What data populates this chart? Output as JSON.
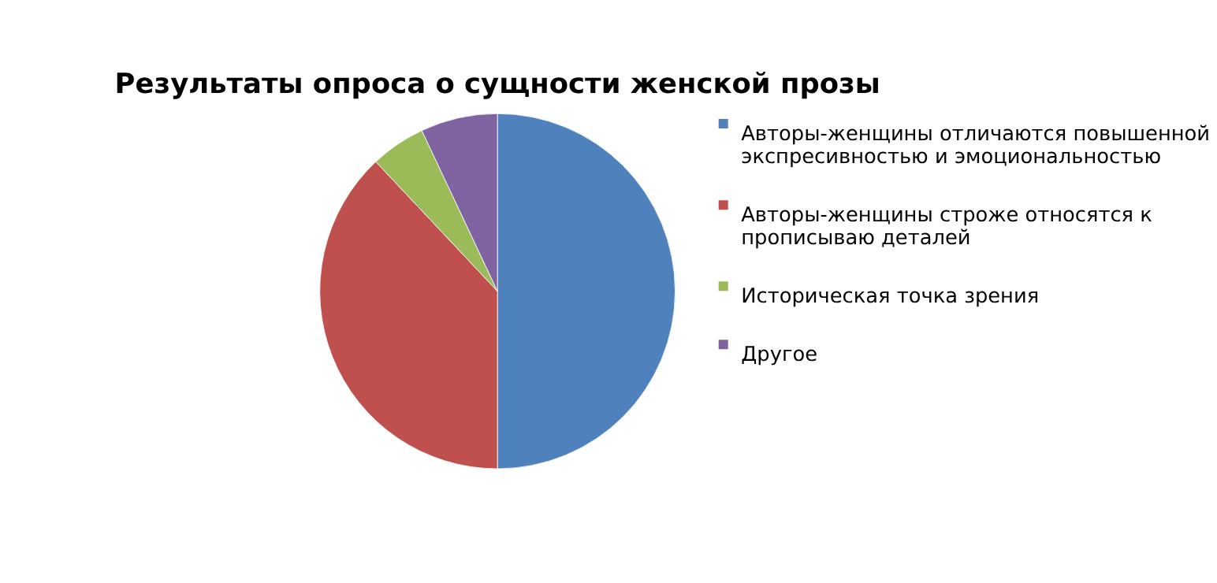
{
  "chart_data": {
    "type": "pie",
    "title": "Результаты опроса о сущности женской прозы",
    "categories": [
      "Авторы-женщины отличаются повышенной экспресивностью и эмоциональностью",
      "Авторы-женщины строже относятся к прописываю деталей",
      "Историческая точка зрения",
      "Другое"
    ],
    "values": [
      50,
      38,
      5,
      7
    ],
    "colors": [
      "#4f81bd",
      "#c0504d",
      "#9bbb59",
      "#8064a2"
    ],
    "legend": "right"
  }
}
